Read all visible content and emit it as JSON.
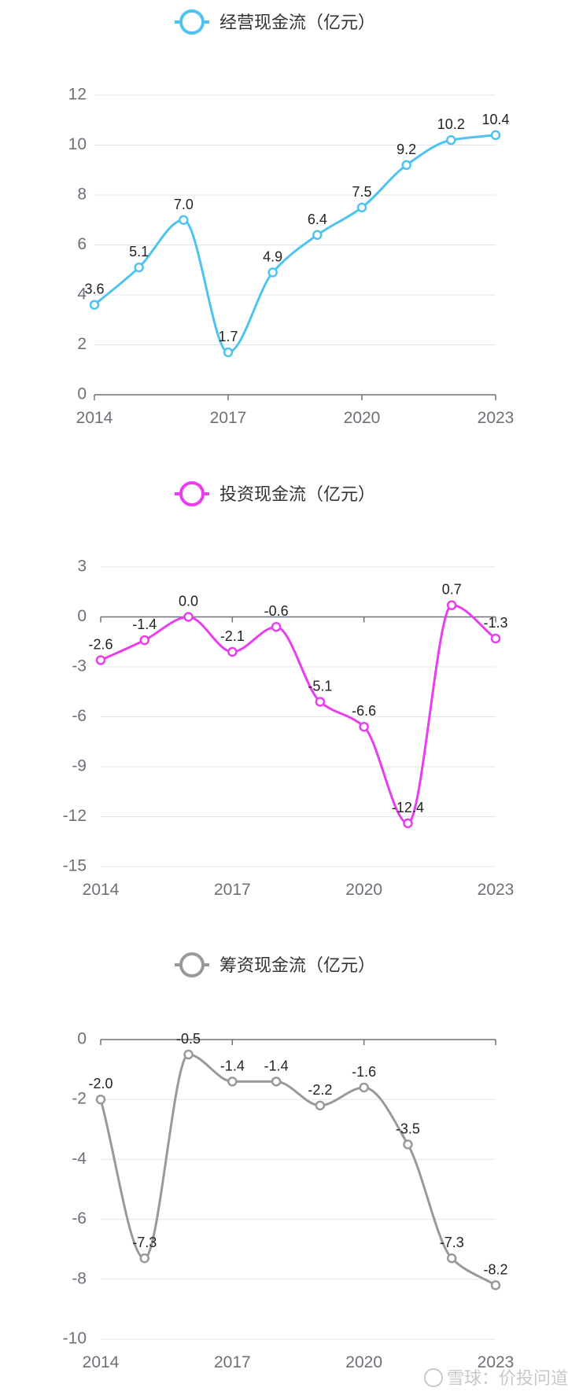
{
  "chart_data": [
    {
      "type": "line",
      "title": "",
      "x": [
        "2014",
        "2015",
        "2016",
        "2017",
        "2018",
        "2019",
        "2020",
        "2021",
        "2022",
        "2023"
      ],
      "x_tick_labels": [
        "2014",
        "2017",
        "2020",
        "2023"
      ],
      "series": [
        {
          "name": "经营现金流（亿元）",
          "values": [
            3.6,
            5.1,
            7.0,
            1.7,
            4.9,
            6.4,
            7.5,
            9.2,
            10.2,
            10.4
          ],
          "labels": [
            "3.6",
            "5.1",
            "7.0",
            "1.7",
            "4.9",
            "6.4",
            "7.5",
            "9.2",
            "10.2",
            "10.4"
          ]
        }
      ],
      "ylim": [
        0,
        12
      ],
      "y_ticks": [
        0,
        2,
        4,
        6,
        8,
        10,
        12
      ],
      "color": "#4fc3f0",
      "grid": true,
      "legend_position": "top-center",
      "smooth": true
    },
    {
      "type": "line",
      "title": "",
      "x": [
        "2014",
        "2015",
        "2016",
        "2017",
        "2018",
        "2019",
        "2020",
        "2021",
        "2022",
        "2023"
      ],
      "x_tick_labels": [
        "2014",
        "2017",
        "2020",
        "2023"
      ],
      "series": [
        {
          "name": "投资现金流（亿元）",
          "values": [
            -2.6,
            -1.4,
            0.0,
            -2.1,
            -0.6,
            -5.1,
            -6.6,
            -12.4,
            0.7,
            -1.3
          ],
          "labels": [
            "-2.6",
            "-1.4",
            "0.0",
            "-2.1",
            "-0.6",
            "-5.1",
            "-6.6",
            "-12.4",
            "0.7",
            "-1.3"
          ]
        }
      ],
      "ylim": [
        -15,
        3
      ],
      "y_ticks": [
        3,
        0,
        -3,
        -6,
        -9,
        -12,
        -15
      ],
      "color": "#e83ef0",
      "grid": true,
      "legend_position": "top-center",
      "smooth": true
    },
    {
      "type": "line",
      "title": "",
      "x": [
        "2014",
        "2015",
        "2016",
        "2017",
        "2018",
        "2019",
        "2020",
        "2021",
        "2022",
        "2023"
      ],
      "x_tick_labels": [
        "2014",
        "2017",
        "2020",
        "2023"
      ],
      "series": [
        {
          "name": "筹资现金流（亿元）",
          "values": [
            -2.0,
            -7.3,
            -0.5,
            -1.4,
            -1.4,
            -2.2,
            -1.6,
            -3.5,
            -7.3,
            -8.2
          ],
          "labels": [
            "-2.0",
            "-7.3",
            "-0.5",
            "-1.4",
            "-1.4",
            "-2.2",
            "-1.6",
            "-3.5",
            "-7.3",
            "-8.2"
          ]
        }
      ],
      "ylim": [
        -10,
        0
      ],
      "y_ticks": [
        0,
        -2,
        -4,
        -6,
        -8,
        -10
      ],
      "color": "#999999",
      "grid": true,
      "legend_position": "top-center",
      "smooth": true
    }
  ],
  "watermark": {
    "text": "雪球：价投问道"
  }
}
